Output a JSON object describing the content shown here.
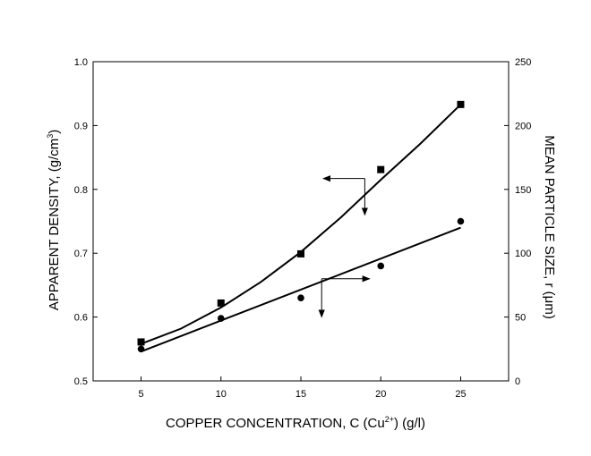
{
  "chart_data": {
    "type": "scatter",
    "xlabel": {
      "main": "COPPER CONCENTRATION, C (Cu",
      "sup": "2+",
      "tail": ") (g/l)"
    },
    "ylabel_left": {
      "main": "APPARENT DENSITY, (g/cm",
      "sup": "3",
      "tail": ")"
    },
    "ylabel_right": "MEAN PARTICLE SIZE, r (μm)",
    "xlim": [
      2,
      28
    ],
    "ylim_left": [
      0.5,
      1.0
    ],
    "ylim_right": [
      0,
      250
    ],
    "x_ticks": [
      5,
      10,
      15,
      20,
      25
    ],
    "x_tick_labels": [
      "5",
      "10",
      "15",
      "20",
      "25"
    ],
    "y_left_ticks": [
      0.5,
      0.6,
      0.7,
      0.8,
      0.9,
      1.0
    ],
    "y_left_tick_labels": [
      "0.5",
      "0.6",
      "0.7",
      "0.8",
      "0.9",
      "1.0"
    ],
    "y_right_ticks": [
      0,
      50,
      100,
      150,
      200,
      250
    ],
    "y_right_tick_labels": [
      "0",
      "50",
      "100",
      "150",
      "200",
      "250"
    ],
    "grid": false,
    "series": [
      {
        "axis": "left",
        "marker": "square",
        "x": [
          5,
          10,
          15,
          20,
          25
        ],
        "y": [
          0.561,
          0.622,
          0.699,
          0.831,
          0.933
        ],
        "fit_x": [
          5,
          7.5,
          10,
          12.5,
          15,
          17.5,
          20,
          22.5,
          25
        ],
        "fit_y": [
          0.558,
          0.582,
          0.615,
          0.655,
          0.702,
          0.756,
          0.815,
          0.872,
          0.933
        ]
      },
      {
        "axis": "right",
        "marker": "circle",
        "x": [
          5,
          10,
          15,
          20,
          25
        ],
        "y": [
          25,
          49,
          65,
          90,
          125
        ],
        "fit_x": [
          5,
          25
        ],
        "fit_y": [
          23,
          120
        ]
      }
    ],
    "annotations": [
      {
        "type": "arrow-pair",
        "corner": [
          19.0,
          0.817
        ],
        "horizontal_to": 16.4,
        "vertical_to": 0.76,
        "meaning": "square series uses left axis"
      },
      {
        "type": "arrow-pair",
        "corner": [
          16.3,
          0.66
        ],
        "horizontal_to": 19.3,
        "vertical_to": 0.6,
        "meaning": "circle series uses right axis"
      }
    ]
  }
}
